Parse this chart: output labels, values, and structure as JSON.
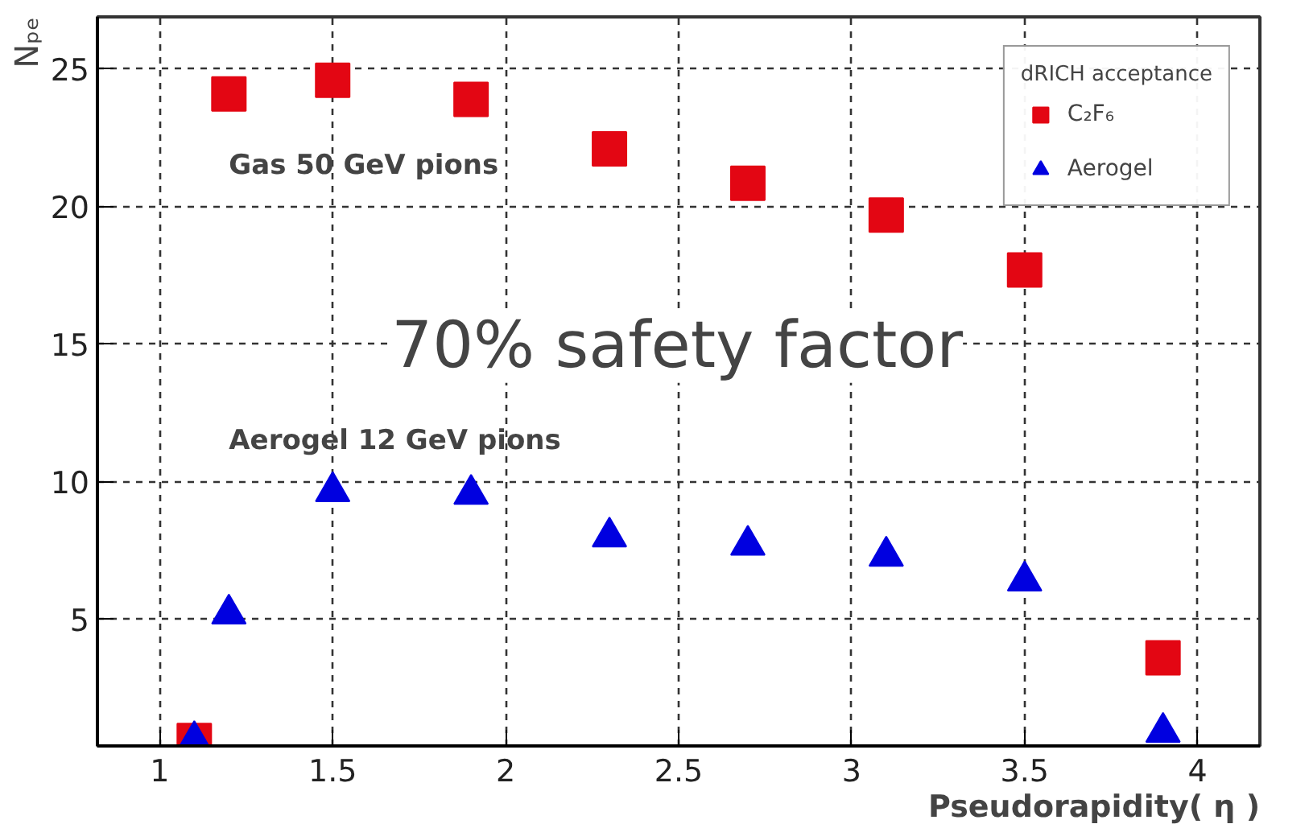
{
  "chart_data": {
    "type": "scatter",
    "xlabel": "Pseudorapidity( η )",
    "ylabel": "Nₚₑ",
    "legend_title": "dRICH acceptance",
    "x": [
      1.1,
      1.2,
      1.5,
      1.9,
      2.3,
      2.7,
      3.1,
      3.5,
      3.9
    ],
    "series": [
      {
        "name": "C₂F₆",
        "color": "#e30613",
        "marker": "square",
        "values": [
          0.6,
          24.1,
          24.6,
          23.9,
          22.1,
          20.85,
          19.7,
          17.7,
          3.6
        ]
      },
      {
        "name": "Aerogel",
        "color": "#0000e0",
        "marker": "triangle",
        "values": [
          0.6,
          5.2,
          9.65,
          9.55,
          8.0,
          7.7,
          7.3,
          6.4,
          0.9
        ]
      }
    ],
    "annotations": [
      "Gas 50 GeV pions",
      "70% safety factor",
      "Aerogel 12 GeV pions"
    ],
    "xlim": [
      0.82,
      4.18
    ],
    "ylim": [
      0.4,
      26.9
    ],
    "xticks": [
      1,
      1.5,
      2,
      2.5,
      3,
      3.5,
      4
    ],
    "yticks": [
      5,
      10,
      15,
      20,
      25
    ],
    "grid": true,
    "legend": "top right",
    "line_style": "dashed"
  }
}
